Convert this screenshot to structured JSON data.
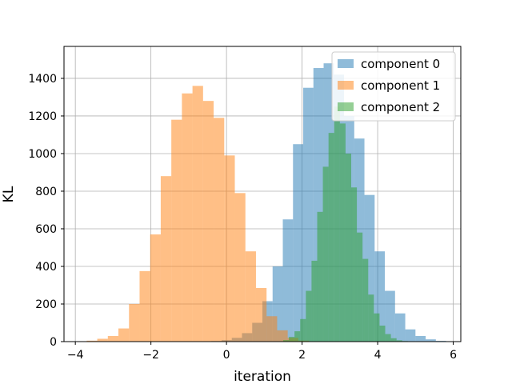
{
  "chart_data": {
    "type": "histogram",
    "xlabel": "iteration",
    "ylabel": "KL",
    "xlim": [
      -4.3,
      6.2
    ],
    "ylim": [
      0,
      1570
    ],
    "xticks": [
      -4,
      -2,
      0,
      2,
      4,
      6
    ],
    "xtick_labels": [
      "−4",
      "−2",
      "0",
      "2",
      "4",
      "6"
    ],
    "yticks": [
      0,
      200,
      400,
      600,
      800,
      1000,
      1200,
      1400
    ],
    "ytick_labels": [
      "0",
      "200",
      "400",
      "600",
      "800",
      "1000",
      "1200",
      "1400"
    ],
    "grid": true,
    "legend_position": "top-right",
    "alpha": 0.5,
    "series": [
      {
        "name": "component 0",
        "color": "#1f77b4",
        "bin_start": -0.4,
        "bin_width": 0.27,
        "counts": [
          3,
          8,
          20,
          45,
          100,
          215,
          400,
          650,
          1050,
          1350,
          1455,
          1480,
          1420,
          1200,
          1080,
          780,
          480,
          270,
          150,
          65,
          30,
          12,
          4,
          2
        ]
      },
      {
        "name": "component 1",
        "color": "#ff7f0e",
        "bin_start": -3.7,
        "bin_width": 0.28,
        "counts": [
          5,
          15,
          30,
          70,
          200,
          375,
          570,
          880,
          1180,
          1320,
          1360,
          1280,
          1190,
          990,
          790,
          480,
          285,
          135,
          60,
          20,
          5
        ]
      },
      {
        "name": "component 2",
        "color": "#2ca02c",
        "bin_start": 1.5,
        "bin_width": 0.15,
        "counts": [
          8,
          25,
          55,
          120,
          270,
          430,
          690,
          930,
          1110,
          1250,
          1160,
          1000,
          820,
          580,
          440,
          250,
          150,
          85,
          40,
          18,
          7,
          3
        ]
      }
    ]
  }
}
